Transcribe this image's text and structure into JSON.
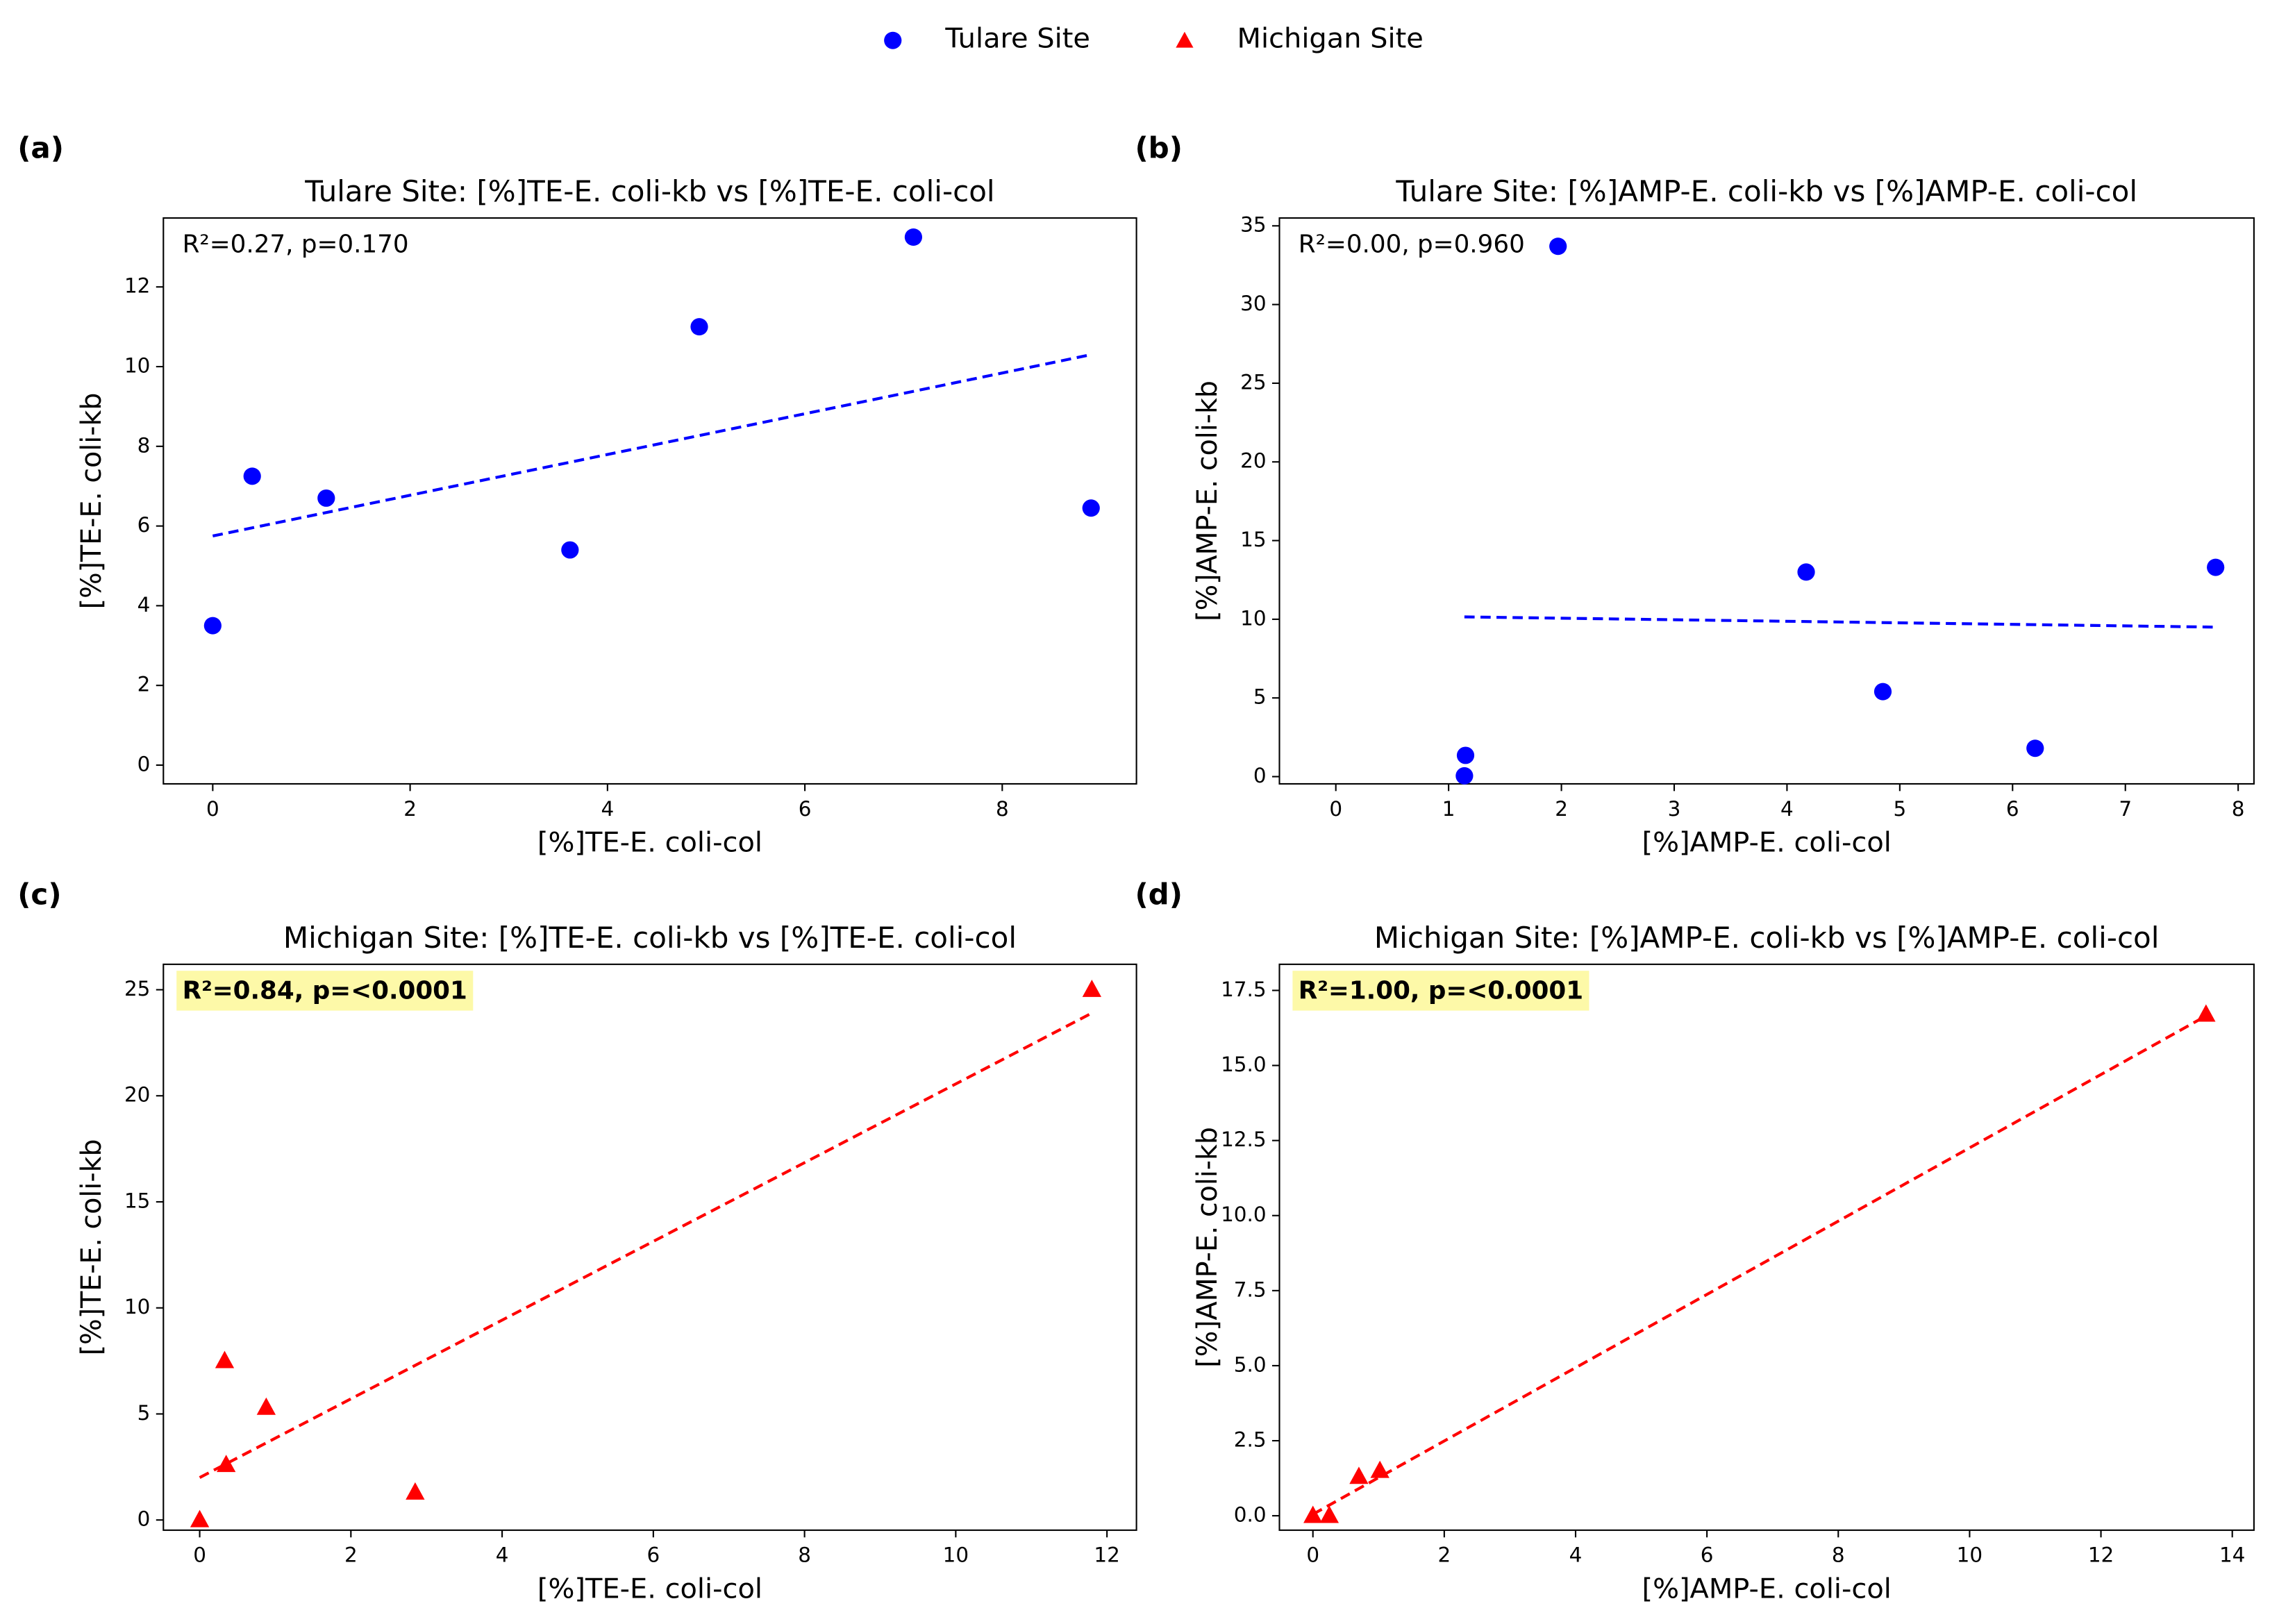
{
  "chart_data": [
    {
      "type": "scatter",
      "label": "(a)",
      "title": "Tulare Site: [%]TE-E. coli-kb vs [%]TE-E. coli-col",
      "x_label": "[%]TE-E. coli-col",
      "y_label": "[%]TE-E. coli-kb",
      "annotation": "R²=0.27, p=0.170",
      "annotation_color": "#0000ff",
      "annotation_bold": false,
      "series": [
        {
          "name": "Tulare Site",
          "color": "#0000ff",
          "marker": "circle",
          "x": [
            0,
            0.4,
            1.15,
            3.62,
            4.93,
            7.1,
            8.9
          ],
          "values": [
            3.5,
            7.25,
            6.7,
            5.4,
            11.0,
            13.25,
            6.45
          ]
        }
      ],
      "fit": {
        "x": [
          0,
          8.9
        ],
        "y": [
          5.75,
          10.3
        ]
      },
      "xlim": [
        -0.5,
        9.36
      ],
      "ylim": [
        -0.47,
        13.73
      ],
      "xticks": [
        0,
        2,
        4,
        6,
        8
      ],
      "yticks": [
        0,
        2,
        4,
        6,
        8,
        10,
        12
      ]
    },
    {
      "type": "scatter",
      "label": "(b)",
      "title": "Tulare Site: [%]AMP-E. coli-kb vs [%]AMP-E. coli-col",
      "x_label": "[%]AMP-E. coli-col",
      "y_label": "[%]AMP-E. coli-kb",
      "annotation": "R²=0.00, p=0.960",
      "annotation_color": "#0000ff",
      "annotation_bold": false,
      "series": [
        {
          "name": "Tulare Site",
          "color": "#0000ff",
          "marker": "circle",
          "x": [
            1.14,
            1.15,
            1.97,
            4.17,
            4.85,
            6.2,
            7.8
          ],
          "values": [
            0.05,
            1.35,
            33.7,
            13.0,
            5.4,
            1.8,
            13.3
          ]
        }
      ],
      "fit": {
        "x": [
          1.14,
          7.8
        ],
        "y": [
          10.15,
          9.5
        ]
      },
      "xlim": [
        -0.5,
        8.14
      ],
      "ylim": [
        -0.46,
        35.5
      ],
      "xticks": [
        0,
        1,
        2,
        3,
        4,
        5,
        6,
        7,
        8
      ],
      "yticks": [
        0,
        5,
        10,
        15,
        20,
        25,
        30,
        35
      ]
    },
    {
      "type": "scatter",
      "label": "(c)",
      "title": "Michigan Site: [%]TE-E. coli-kb vs [%]TE-E. coli-col",
      "x_label": "[%]TE-E. coli-col",
      "y_label": "[%]TE-E. coli-kb",
      "annotation": "R²=0.84, p=<0.0001",
      "annotation_color": "#ff0000",
      "annotation_bold": true,
      "annotation_box": "#fdf9a8",
      "series": [
        {
          "name": "Michigan Site",
          "color": "#ff0000",
          "marker": "triangle",
          "x": [
            0,
            0.33,
            0.35,
            0.88,
            2.85,
            11.8
          ],
          "values": [
            0,
            7.5,
            2.6,
            5.3,
            1.3,
            25
          ]
        }
      ],
      "fit": {
        "x": [
          0,
          11.8
        ],
        "y": [
          2.0,
          23.9
        ]
      },
      "xlim": [
        -0.48,
        12.39
      ],
      "ylim": [
        -0.48,
        26.2
      ],
      "xticks": [
        0,
        2,
        4,
        6,
        8,
        10,
        12
      ],
      "yticks": [
        0,
        5,
        10,
        15,
        20,
        25
      ]
    },
    {
      "type": "scatter",
      "label": "(d)",
      "title": "Michigan Site: [%]AMP-E. coli-kb vs [%]AMP-E. coli-col",
      "x_label": "[%]AMP-E. coli-col",
      "y_label": "[%]AMP-E. coli-kb",
      "annotation": "R²=1.00, p=<0.0001",
      "annotation_color": "#ff0000",
      "annotation_bold": true,
      "annotation_box": "#fdf9a8",
      "series": [
        {
          "name": "Michigan Site",
          "color": "#ff0000",
          "marker": "triangle",
          "x": [
            0,
            0.25,
            0.7,
            1.02,
            13.6
          ],
          "values": [
            0,
            0,
            1.3,
            1.5,
            16.7
          ]
        }
      ],
      "fit": {
        "x": [
          0,
          13.6
        ],
        "y": [
          0.05,
          16.65
        ]
      },
      "xlim": [
        -0.51,
        14.33
      ],
      "ylim": [
        -0.48,
        18.37
      ],
      "xticks": [
        0,
        2,
        4,
        6,
        8,
        10,
        12,
        14
      ],
      "yticks": [
        {
          "value": 0,
          "label": "0.0"
        },
        2.5,
        {
          "value": 5,
          "label": "5.0"
        },
        7.5,
        {
          "value": 10,
          "label": "10.0"
        },
        12.5,
        {
          "value": 15,
          "label": "15.0"
        },
        17.5
      ]
    }
  ]
}
